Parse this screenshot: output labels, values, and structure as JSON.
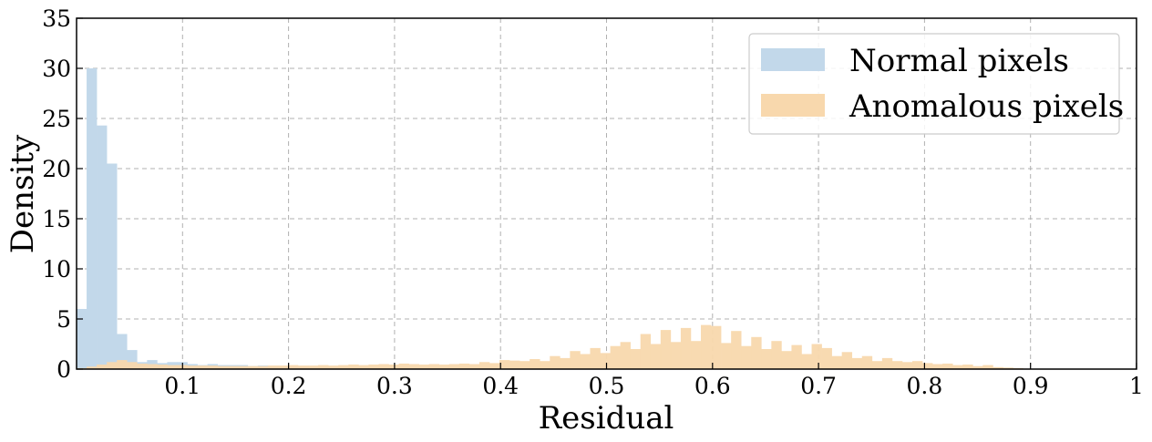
{
  "chart_data": {
    "type": "histogram",
    "xlabel": "Residual",
    "ylabel": "Density",
    "xlim": [
      0.0,
      1.0
    ],
    "ylim": [
      0,
      35
    ],
    "grid": true,
    "legend_position": "top-right",
    "bin_width": 0.0095,
    "x_ticks": [
      {
        "value": 0.1,
        "label": "0.1"
      },
      {
        "value": 0.2,
        "label": "0.2"
      },
      {
        "value": 0.3,
        "label": "0.3"
      },
      {
        "value": 0.4,
        "label": "0.4"
      },
      {
        "value": 0.5,
        "label": "0.5"
      },
      {
        "value": 0.6,
        "label": "0.6"
      },
      {
        "value": 0.7,
        "label": "0.7"
      },
      {
        "value": 0.8,
        "label": "0.8"
      },
      {
        "value": 0.9,
        "label": "0.9"
      },
      {
        "value": 1.0,
        "label": "1"
      }
    ],
    "y_ticks": [
      {
        "value": 0,
        "label": "0"
      },
      {
        "value": 5,
        "label": "5"
      },
      {
        "value": 10,
        "label": "10"
      },
      {
        "value": 15,
        "label": "15"
      },
      {
        "value": 20,
        "label": "20"
      },
      {
        "value": 25,
        "label": "25"
      },
      {
        "value": 30,
        "label": "30"
      },
      {
        "value": 35,
        "label": "35"
      }
    ],
    "series": [
      {
        "name": "Normal pixels",
        "color": "#c2d8ea",
        "bins": [
          [
            0.0,
            6.0
          ],
          [
            0.0095,
            30.0
          ],
          [
            0.019,
            24.3
          ],
          [
            0.0285,
            20.5
          ],
          [
            0.038,
            3.5
          ],
          [
            0.0475,
            1.9
          ],
          [
            0.057,
            0.7
          ],
          [
            0.0665,
            0.9
          ],
          [
            0.076,
            0.6
          ],
          [
            0.0855,
            0.7
          ],
          [
            0.095,
            0.7
          ],
          [
            0.1045,
            0.5
          ],
          [
            0.114,
            0.4
          ],
          [
            0.1235,
            0.5
          ],
          [
            0.133,
            0.4
          ],
          [
            0.1425,
            0.4
          ],
          [
            0.152,
            0.4
          ],
          [
            0.1615,
            0.3
          ],
          [
            0.171,
            0.35
          ],
          [
            0.1805,
            0.3
          ],
          [
            0.19,
            0.3
          ],
          [
            0.1995,
            0.25
          ],
          [
            0.209,
            0.25
          ],
          [
            0.2185,
            0.2
          ],
          [
            0.228,
            0.2
          ],
          [
            0.2375,
            0.2
          ],
          [
            0.247,
            0.15
          ],
          [
            0.2565,
            0.15
          ],
          [
            0.266,
            0.15
          ],
          [
            0.2755,
            0.1
          ],
          [
            0.285,
            0.1
          ],
          [
            0.2945,
            0.1
          ]
        ]
      },
      {
        "name": "Anomalous pixels",
        "color": "#f8d8ad",
        "bins": [
          [
            0.0,
            0.1
          ],
          [
            0.0095,
            0.25
          ],
          [
            0.019,
            0.45
          ],
          [
            0.0285,
            0.7
          ],
          [
            0.038,
            0.9
          ],
          [
            0.0475,
            0.7
          ],
          [
            0.057,
            0.55
          ],
          [
            0.0665,
            0.5
          ],
          [
            0.076,
            0.45
          ],
          [
            0.0855,
            0.4
          ],
          [
            0.095,
            0.4
          ],
          [
            0.1045,
            0.35
          ],
          [
            0.114,
            0.35
          ],
          [
            0.1235,
            0.35
          ],
          [
            0.133,
            0.3
          ],
          [
            0.1425,
            0.3
          ],
          [
            0.152,
            0.3
          ],
          [
            0.1615,
            0.3
          ],
          [
            0.171,
            0.3
          ],
          [
            0.1805,
            0.35
          ],
          [
            0.19,
            0.35
          ],
          [
            0.1995,
            0.4
          ],
          [
            0.209,
            0.35
          ],
          [
            0.2185,
            0.35
          ],
          [
            0.228,
            0.4
          ],
          [
            0.2375,
            0.35
          ],
          [
            0.247,
            0.4
          ],
          [
            0.2565,
            0.45
          ],
          [
            0.266,
            0.4
          ],
          [
            0.2755,
            0.45
          ],
          [
            0.285,
            0.5
          ],
          [
            0.2945,
            0.45
          ],
          [
            0.304,
            0.55
          ],
          [
            0.3135,
            0.5
          ],
          [
            0.323,
            0.45
          ],
          [
            0.3325,
            0.5
          ],
          [
            0.342,
            0.45
          ],
          [
            0.3515,
            0.5
          ],
          [
            0.361,
            0.55
          ],
          [
            0.3705,
            0.5
          ],
          [
            0.38,
            0.7
          ],
          [
            0.3895,
            0.6
          ],
          [
            0.399,
            0.9
          ],
          [
            0.4085,
            0.85
          ],
          [
            0.418,
            0.8
          ],
          [
            0.4275,
            1.0
          ],
          [
            0.437,
            0.8
          ],
          [
            0.4465,
            1.3
          ],
          [
            0.456,
            1.1
          ],
          [
            0.4655,
            1.8
          ],
          [
            0.475,
            1.5
          ],
          [
            0.4845,
            2.1
          ],
          [
            0.494,
            1.6
          ],
          [
            0.5035,
            2.3
          ],
          [
            0.513,
            2.7
          ],
          [
            0.5225,
            2.0
          ],
          [
            0.532,
            3.5
          ],
          [
            0.5415,
            2.5
          ],
          [
            0.551,
            3.9
          ],
          [
            0.5605,
            2.7
          ],
          [
            0.57,
            4.1
          ],
          [
            0.5795,
            2.8
          ],
          [
            0.589,
            4.4
          ],
          [
            0.5985,
            4.3
          ],
          [
            0.608,
            2.6
          ],
          [
            0.6175,
            3.8
          ],
          [
            0.627,
            2.3
          ],
          [
            0.6365,
            3.2
          ],
          [
            0.646,
            2.0
          ],
          [
            0.6555,
            2.8
          ],
          [
            0.665,
            1.8
          ],
          [
            0.6745,
            2.4
          ],
          [
            0.684,
            1.5
          ],
          [
            0.6935,
            2.5
          ],
          [
            0.703,
            2.1
          ],
          [
            0.7125,
            1.3
          ],
          [
            0.722,
            1.7
          ],
          [
            0.7315,
            1.1
          ],
          [
            0.741,
            1.3
          ],
          [
            0.7505,
            0.8
          ],
          [
            0.76,
            1.1
          ],
          [
            0.7695,
            0.8
          ],
          [
            0.779,
            0.7
          ],
          [
            0.7885,
            0.8
          ],
          [
            0.798,
            0.6
          ],
          [
            0.8075,
            0.5
          ],
          [
            0.817,
            0.55
          ],
          [
            0.8265,
            0.4
          ],
          [
            0.836,
            0.45
          ],
          [
            0.8455,
            0.3
          ],
          [
            0.855,
            0.4
          ],
          [
            0.8645,
            0.2
          ],
          [
            0.874,
            0.15
          ],
          [
            0.8835,
            0.1
          ],
          [
            0.893,
            0.05
          ]
        ]
      }
    ]
  }
}
